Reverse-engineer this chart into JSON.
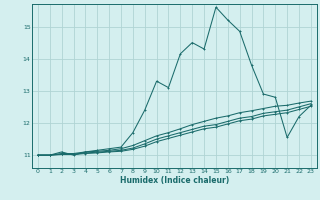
{
  "title": "",
  "xlabel": "Humidex (Indice chaleur)",
  "ylabel": "",
  "bg_color": "#d4efef",
  "grid_color": "#b0d4d4",
  "line_color": "#1a6b6b",
  "xlim": [
    -0.5,
    23.5
  ],
  "ylim": [
    10.6,
    15.7
  ],
  "yticks": [
    11,
    12,
    13,
    14,
    15
  ],
  "xticks": [
    0,
    1,
    2,
    3,
    4,
    5,
    6,
    7,
    8,
    9,
    10,
    11,
    12,
    13,
    14,
    15,
    16,
    17,
    18,
    19,
    20,
    21,
    22,
    23
  ],
  "series1_x": [
    0,
    1,
    2,
    3,
    4,
    5,
    6,
    7,
    8,
    9,
    10,
    11,
    12,
    13,
    14,
    15,
    16,
    17,
    18,
    19,
    20,
    21,
    22,
    23
  ],
  "series1_y": [
    11.0,
    11.0,
    11.1,
    11.0,
    11.1,
    11.15,
    11.2,
    11.25,
    11.7,
    12.4,
    13.3,
    13.1,
    14.15,
    14.5,
    14.3,
    15.6,
    15.2,
    14.85,
    13.8,
    12.9,
    12.8,
    11.55,
    12.2,
    12.55
  ],
  "series2_x": [
    0,
    1,
    2,
    3,
    4,
    5,
    6,
    7,
    8,
    9,
    10,
    11,
    12,
    13,
    14,
    15,
    16,
    17,
    18,
    19,
    20,
    21,
    22,
    23
  ],
  "series2_y": [
    11.0,
    11.0,
    11.05,
    11.05,
    11.1,
    11.12,
    11.15,
    11.2,
    11.3,
    11.45,
    11.6,
    11.7,
    11.82,
    11.95,
    12.05,
    12.15,
    12.22,
    12.32,
    12.38,
    12.45,
    12.52,
    12.55,
    12.62,
    12.68
  ],
  "series3_x": [
    0,
    1,
    2,
    3,
    4,
    5,
    6,
    7,
    8,
    9,
    10,
    11,
    12,
    13,
    14,
    15,
    16,
    17,
    18,
    19,
    20,
    21,
    22,
    23
  ],
  "series3_y": [
    11.0,
    11.0,
    11.03,
    11.03,
    11.07,
    11.09,
    11.12,
    11.15,
    11.22,
    11.35,
    11.5,
    11.6,
    11.7,
    11.8,
    11.9,
    11.95,
    12.05,
    12.15,
    12.2,
    12.3,
    12.35,
    12.4,
    12.5,
    12.6
  ],
  "series4_x": [
    0,
    1,
    2,
    3,
    4,
    5,
    6,
    7,
    8,
    9,
    10,
    11,
    12,
    13,
    14,
    15,
    16,
    17,
    18,
    19,
    20,
    21,
    22,
    23
  ],
  "series4_y": [
    11.0,
    11.0,
    11.02,
    11.02,
    11.05,
    11.07,
    11.1,
    11.12,
    11.18,
    11.28,
    11.42,
    11.52,
    11.62,
    11.72,
    11.82,
    11.87,
    11.97,
    12.07,
    12.12,
    12.22,
    12.27,
    12.32,
    12.42,
    12.52
  ]
}
